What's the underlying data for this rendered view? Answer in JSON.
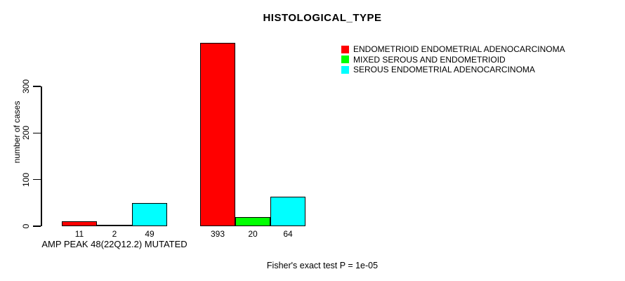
{
  "chart_data": {
    "type": "bar",
    "title": "HISTOLOGICAL_TYPE",
    "ylabel": "number of cases",
    "xlabel": "",
    "categories": [
      "AMP PEAK 48(22Q12.2) MUTATED",
      ""
    ],
    "series": [
      {
        "name": "ENDOMETRIOID ENDOMETRIAL ADENOCARCINOMA",
        "color": "#ff0000",
        "values": [
          11,
          393
        ]
      },
      {
        "name": "MIXED SEROUS AND ENDOMETRIOID",
        "color": "#00ff00",
        "values": [
          2,
          20
        ]
      },
      {
        "name": "SEROUS ENDOMETRIAL ADENOCARCINOMA",
        "color": "#00ffff",
        "values": [
          49,
          64
        ]
      }
    ],
    "bar_labels": [
      [
        "11",
        "2",
        "49"
      ],
      [
        "393",
        "20",
        "64"
      ]
    ],
    "yticks": [
      0,
      100,
      200,
      300
    ],
    "ylim": [
      0,
      400
    ],
    "grid": false,
    "legend_position": "top-right",
    "annotation": "Fisher's exact test P = 1e-05",
    "axis_color": "#000000",
    "background_color": "#ffffff"
  }
}
